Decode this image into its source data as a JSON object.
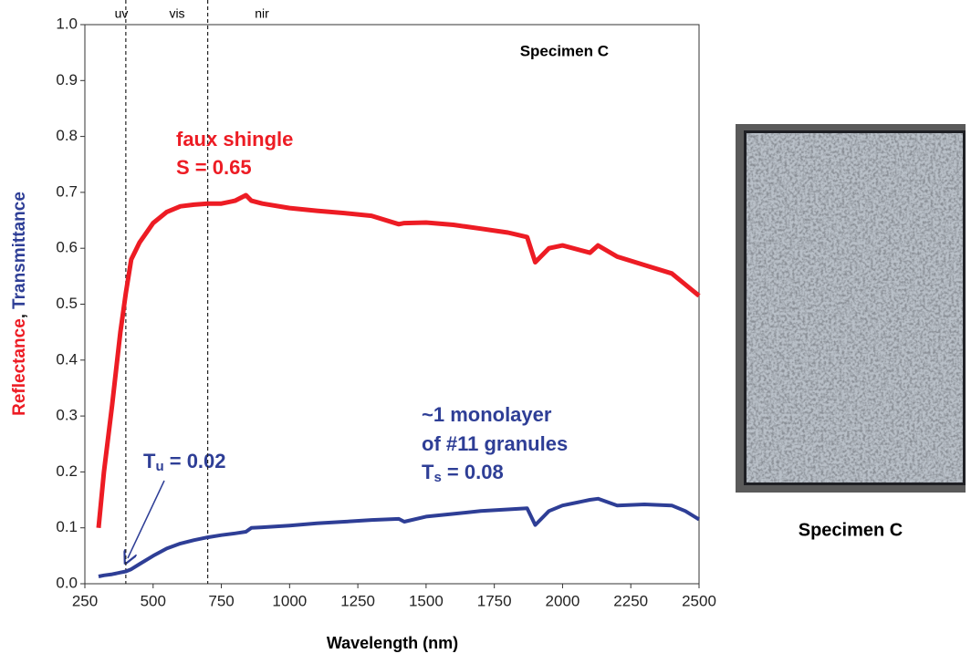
{
  "chart_data": {
    "type": "line",
    "title": "Specimen C",
    "xlabel": "Wavelength (nm)",
    "ylabel": [
      "Reflectance",
      ",",
      "Transmittance"
    ],
    "x": [
      300,
      320,
      350,
      380,
      400,
      420,
      450,
      500,
      550,
      600,
      650,
      700,
      750,
      800,
      840,
      860,
      900,
      1000,
      1100,
      1200,
      1300,
      1400,
      1420,
      1500,
      1600,
      1700,
      1800,
      1870,
      1900,
      1950,
      2000,
      2100,
      2130,
      2200,
      2300,
      2400,
      2450,
      2500
    ],
    "series": [
      {
        "name": "Reflectance",
        "color": "#ed1c24",
        "values": [
          0.1,
          0.2,
          0.32,
          0.45,
          0.52,
          0.58,
          0.61,
          0.645,
          0.665,
          0.675,
          0.678,
          0.68,
          0.68,
          0.685,
          0.695,
          0.685,
          0.68,
          0.672,
          0.667,
          0.663,
          0.658,
          0.643,
          0.645,
          0.646,
          0.642,
          0.635,
          0.628,
          0.62,
          0.575,
          0.6,
          0.605,
          0.592,
          0.605,
          0.585,
          0.57,
          0.555,
          0.535,
          0.515
        ]
      },
      {
        "name": "Transmittance",
        "color": "#2e3e96",
        "values": [
          0.013,
          0.015,
          0.017,
          0.02,
          0.022,
          0.026,
          0.035,
          0.05,
          0.063,
          0.072,
          0.078,
          0.083,
          0.087,
          0.09,
          0.093,
          0.1,
          0.101,
          0.104,
          0.108,
          0.111,
          0.114,
          0.116,
          0.111,
          0.12,
          0.125,
          0.13,
          0.133,
          0.135,
          0.105,
          0.13,
          0.14,
          0.15,
          0.152,
          0.14,
          0.142,
          0.14,
          0.13,
          0.115
        ]
      }
    ],
    "xlim": [
      250,
      2500
    ],
    "xticks": [
      250,
      500,
      750,
      1000,
      1250,
      1500,
      1750,
      2000,
      2250,
      2500
    ],
    "ylim": [
      0,
      1
    ],
    "yticks": [
      {
        "value": 0,
        "label": "0.0"
      },
      0.1,
      0.2,
      0.3,
      0.4,
      0.5,
      0.6,
      0.7,
      0.8,
      0.9,
      {
        "value": 1,
        "label": "1.0"
      }
    ],
    "vlines": [
      400,
      700
    ],
    "regions": [
      "uv",
      "vis",
      "nir"
    ],
    "annotations": {
      "reflectance": [
        "faux shingle",
        "S = 0.65"
      ],
      "transmittance": [
        "~1 monolayer",
        "of #11 granules"
      ],
      "ts": [
        "T",
        "s",
        " = 0.08"
      ],
      "tu": [
        "T",
        "u",
        " = 0.02"
      ]
    }
  },
  "photo_caption": "Specimen C"
}
